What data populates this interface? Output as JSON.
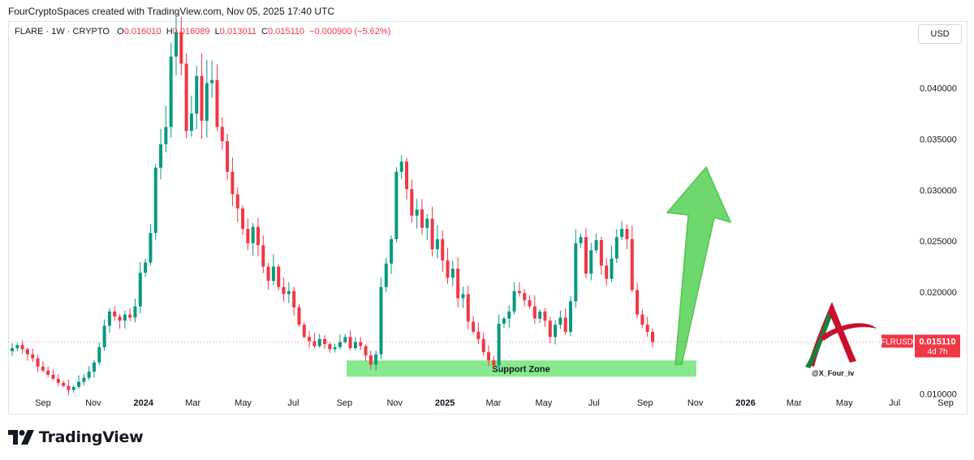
{
  "header": {
    "created_text": "FourCryptoSpaces created with TradingView.com, Nov 05, 2025 17:40 UTC"
  },
  "legend": {
    "symbol": "FLARE · 1W · CRYPTO",
    "open_label": "O",
    "open": "0.016010",
    "high_label": "H",
    "high": "0.016089",
    "low_label": "L",
    "low": "0.013011",
    "close_label": "C",
    "close": "0.015110",
    "change": "−0.000900 (−5.62%)"
  },
  "currency_button": "USD",
  "price_tag": {
    "symbol": "FLRUSD",
    "price": "0.015110",
    "countdown": "4d 7h"
  },
  "annotation": {
    "support_zone": "Support Zone",
    "support_range": [
      0.0117,
      0.0133
    ]
  },
  "watermark": {
    "handle": "@X_Four_iv"
  },
  "branding": {
    "logo_text": "TradingView"
  },
  "colors": {
    "up": "#22ab94",
    "up_candle": "#089981",
    "down": "#f23645",
    "support_fill": "#7ae582",
    "arrow": "#5fd35f"
  },
  "chart_data": {
    "type": "candlestick",
    "timeframe": "1W",
    "ylim": [
      0.0095,
      0.0465
    ],
    "y_ticks": [
      0.01,
      0.015,
      0.02,
      0.025,
      0.03,
      0.035,
      0.04
    ],
    "y_tick_labels": [
      "0.010000",
      "0.015000",
      "0.020000",
      "0.025000",
      "0.030000",
      "0.035000",
      "0.040000"
    ],
    "x_range_days": [
      -19,
      747
    ],
    "x_ticks": [
      {
        "label": "Sep",
        "day": -4,
        "bold": false
      },
      {
        "label": "Nov",
        "day": 57,
        "bold": false
      },
      {
        "label": "2024",
        "day": 118,
        "bold": true
      },
      {
        "label": "Mar",
        "day": 178,
        "bold": false
      },
      {
        "label": "May",
        "day": 239,
        "bold": false
      },
      {
        "label": "Jul",
        "day": 300,
        "bold": false
      },
      {
        "label": "Sep",
        "day": 362,
        "bold": false
      },
      {
        "label": "Nov",
        "day": 423,
        "bold": false
      },
      {
        "label": "2025",
        "day": 484,
        "bold": true
      },
      {
        "label": "Mar",
        "day": 543,
        "bold": false
      },
      {
        "label": "May",
        "day": 604,
        "bold": false
      },
      {
        "label": "Jul",
        "day": 665,
        "bold": false
      },
      {
        "label": "Sep",
        "day": 727,
        "bold": false
      },
      {
        "label": "Nov",
        "day": 788,
        "bold": false
      },
      {
        "label": "2026",
        "day": 849,
        "bold": true
      },
      {
        "label": "Mar",
        "day": 908,
        "bold": false
      },
      {
        "label": "May",
        "day": 969,
        "bold": false
      },
      {
        "label": "Jul",
        "day": 1030,
        "bold": false
      },
      {
        "label": "Sep",
        "day": 1092,
        "bold": false
      }
    ],
    "last_price": 0.01511,
    "closes": [
      0.0145,
      0.0148,
      0.0144,
      0.0139,
      0.0135,
      0.0127,
      0.0123,
      0.0119,
      0.0115,
      0.0111,
      0.0108,
      0.0104,
      0.0107,
      0.0112,
      0.0116,
      0.0122,
      0.0131,
      0.0146,
      0.0167,
      0.0181,
      0.0176,
      0.0172,
      0.0178,
      0.0175,
      0.0186,
      0.0219,
      0.0229,
      0.0258,
      0.0322,
      0.0345,
      0.0362,
      0.0431,
      0.0455,
      0.0424,
      0.0358,
      0.0375,
      0.0412,
      0.0368,
      0.0405,
      0.0408,
      0.0362,
      0.0348,
      0.0318,
      0.0296,
      0.0282,
      0.0262,
      0.0248,
      0.0264,
      0.0246,
      0.0225,
      0.0211,
      0.0225,
      0.0205,
      0.0198,
      0.0201,
      0.0185,
      0.0168,
      0.0156,
      0.0152,
      0.0147,
      0.0154,
      0.0149,
      0.0144,
      0.0146,
      0.0151,
      0.0156,
      0.0145,
      0.0151,
      0.0147,
      0.0138,
      0.0129,
      0.0139,
      0.0205,
      0.0228,
      0.0252,
      0.0318,
      0.0328,
      0.0301,
      0.0275,
      0.0281,
      0.0263,
      0.0272,
      0.0242,
      0.0252,
      0.0231,
      0.0214,
      0.0223,
      0.0194,
      0.0198,
      0.0171,
      0.0161,
      0.0154,
      0.0141,
      0.0133,
      0.0128,
      0.0169,
      0.0174,
      0.0181,
      0.0201,
      0.0199,
      0.0192,
      0.0186,
      0.0174,
      0.0181,
      0.0172,
      0.0156,
      0.0168,
      0.0175,
      0.0161,
      0.0191,
      0.0248,
      0.0254,
      0.0218,
      0.0241,
      0.0251,
      0.0226,
      0.0213,
      0.0233,
      0.0254,
      0.0262,
      0.0252,
      0.0202,
      0.0178,
      0.0168,
      0.0161,
      0.0151
    ],
    "series": [
      {
        "name": "FLARE · 1W · CRYPTO",
        "values": "closes"
      }
    ],
    "overlays": [
      "support-zone-rect",
      "green-up-arrow"
    ]
  }
}
